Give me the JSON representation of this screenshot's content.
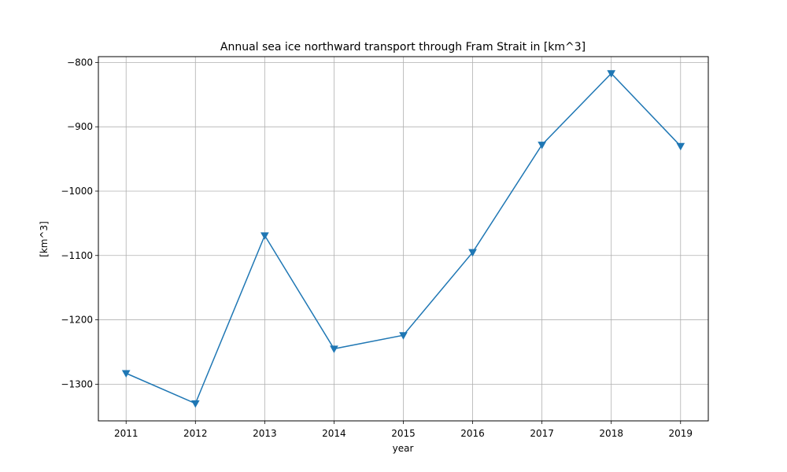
{
  "chart_data": {
    "type": "line",
    "title": "Annual sea ice northward transport through Fram Strait in [km^3]",
    "xlabel": "year",
    "ylabel": "[km^3]",
    "x": [
      2011,
      2012,
      2013,
      2014,
      2015,
      2016,
      2017,
      2018,
      2019
    ],
    "series": [
      {
        "values": [
          -1283,
          -1330,
          -1069,
          -1245,
          -1224,
          -1095,
          -928,
          -817,
          -930
        ],
        "color": "#1f77b4",
        "marker": "triangle-down"
      }
    ],
    "xlim": [
      2010.6,
      2019.4
    ],
    "ylim": [
      -1357,
      -791
    ],
    "xticks": [
      2011,
      2012,
      2013,
      2014,
      2015,
      2016,
      2017,
      2018,
      2019
    ],
    "yticks": [
      -1300,
      -1200,
      -1100,
      -1000,
      -900,
      -800
    ],
    "ytick_labels": [
      "−1300",
      "−1200",
      "−1100",
      "−1000",
      "−900",
      "−800"
    ],
    "grid": true
  }
}
